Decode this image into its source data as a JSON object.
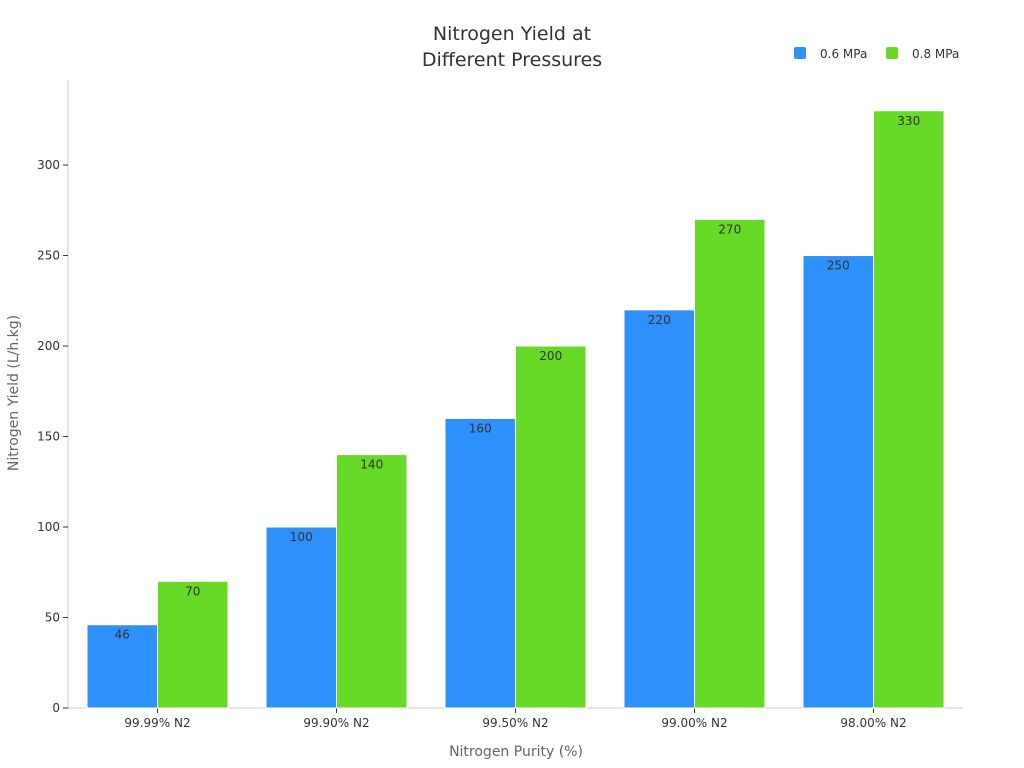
{
  "chart_data": {
    "type": "bar",
    "title": [
      "Nitrogen Yield at",
      "Different Pressures"
    ],
    "xlabel": "Nitrogen Purity (%)",
    "ylabel": "Nitrogen Yield (L/h.kg)",
    "categories": [
      "99.99% N2",
      "99.90% N2",
      "99.50% N2",
      "99.00% N2",
      "98.00% N2"
    ],
    "series": [
      {
        "name": "0.6 MPa",
        "color": "#2e90fa",
        "values": [
          46,
          100,
          160,
          220,
          250
        ]
      },
      {
        "name": "0.8 MPa",
        "color": "#66da26",
        "values": [
          70,
          140,
          200,
          270,
          330
        ]
      }
    ],
    "ylim": [
      0,
      347
    ],
    "yticks": [
      0,
      50,
      100,
      150,
      200,
      250,
      300
    ],
    "grid": false,
    "legend_position": "top-right",
    "data_labels": true
  }
}
